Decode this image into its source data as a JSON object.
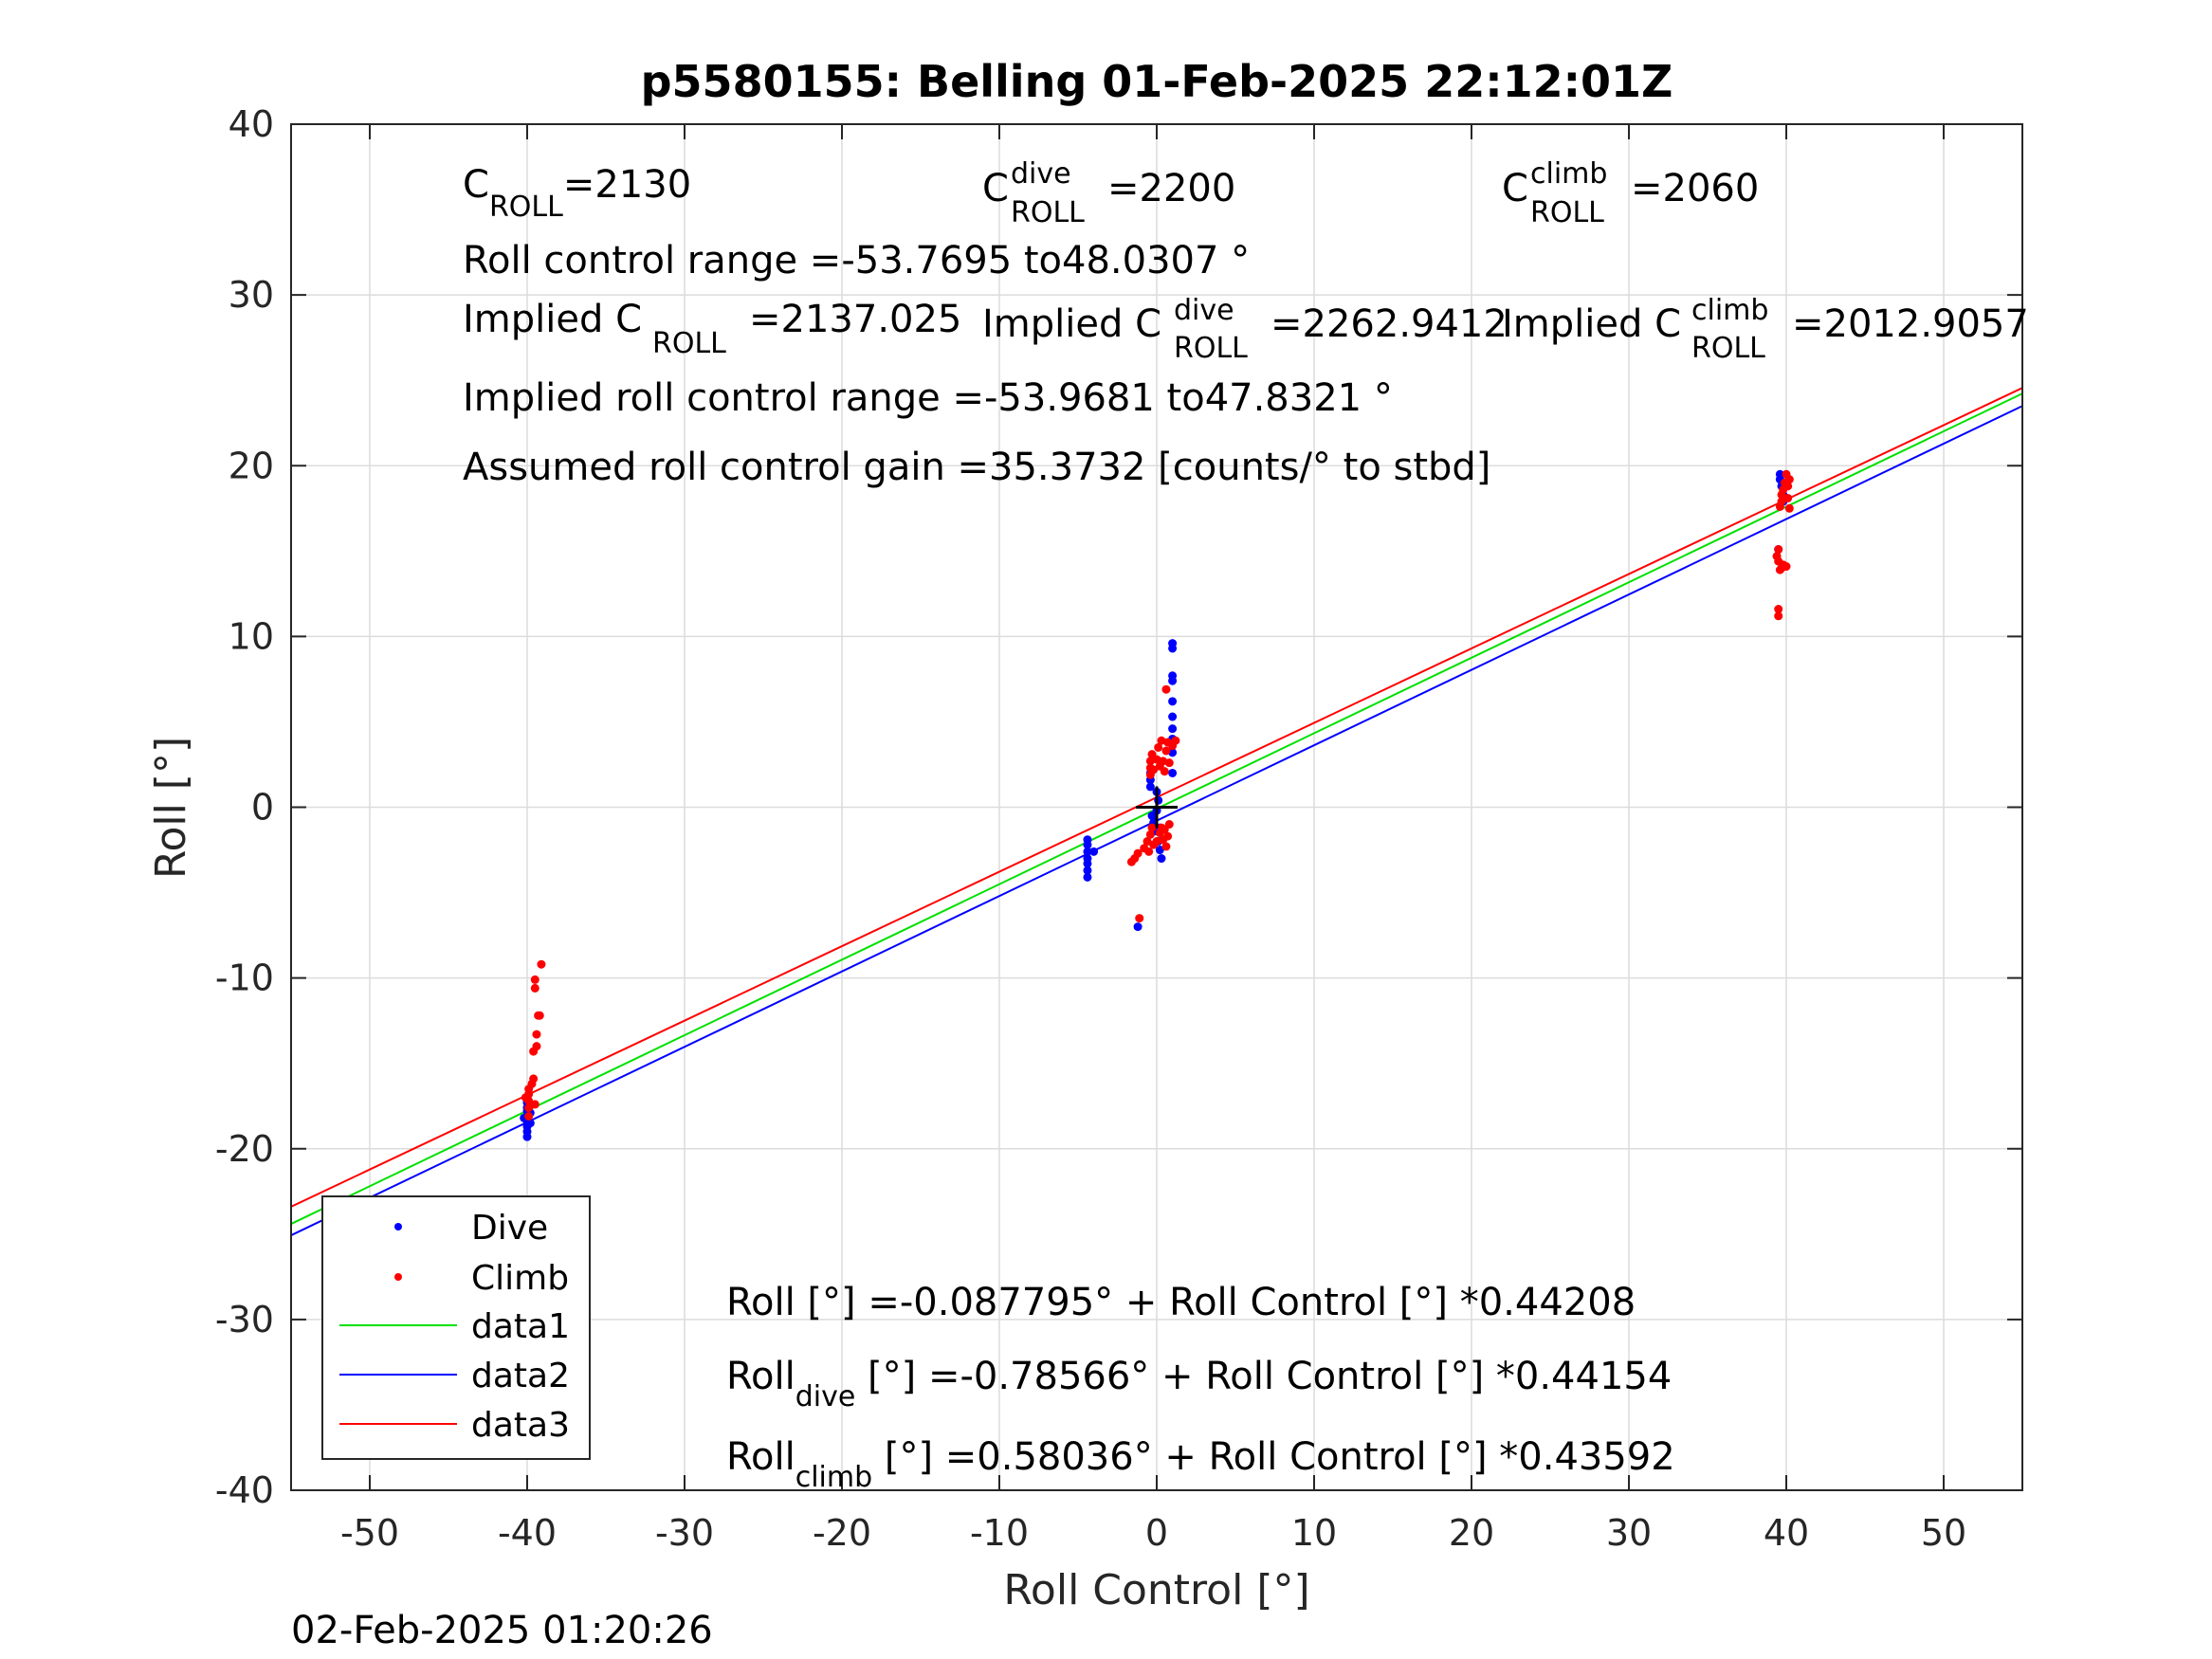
{
  "chart_data": {
    "type": "scatter",
    "title": "p5580155: Belling 01-Feb-2025 22:12:01Z",
    "xlabel": "Roll Control [°]",
    "ylabel": "Roll [°]",
    "xlim": [
      -55,
      55
    ],
    "ylim": [
      -40,
      40
    ],
    "xticks": [
      -50,
      -40,
      -30,
      -20,
      -10,
      0,
      10,
      20,
      30,
      40,
      50
    ],
    "yticks": [
      -40,
      -30,
      -20,
      -10,
      0,
      10,
      20,
      30,
      40
    ],
    "grid": true,
    "legend_position": "bottom-left",
    "footer_timestamp": "02-Feb-2025 01:20:26",
    "annotations": {
      "c_roll": {
        "base": "C",
        "sub": "ROLL",
        "value": "=2130"
      },
      "c_roll_dive": {
        "base": "C",
        "sup": "dive",
        "sub": "ROLL",
        "value": "=2200"
      },
      "c_roll_climb": {
        "base": "C",
        "sup": "climb",
        "sub": "ROLL",
        "value": "=2060"
      },
      "roll_control_range": "Roll control range =-53.7695 to48.0307 °",
      "implied_c_roll": {
        "prefix": "Implied C",
        "sub": "ROLL",
        "value": "=2137.025"
      },
      "implied_c_roll_dive": {
        "prefix": "Implied C",
        "sup": "dive",
        "sub": "ROLL",
        "value": "=2262.9412"
      },
      "implied_c_roll_climb": {
        "prefix": "Implied C",
        "sup": "climb",
        "sub": "ROLL",
        "value": "=2012.9057"
      },
      "implied_range": "Implied roll control range =-53.9681 to47.8321 °",
      "assumed_gain": "Assumed roll control gain =35.3732 [counts/° to stbd]",
      "fit_all": "Roll [°] =-0.087795° + Roll Control [°] *0.44208",
      "fit_dive": {
        "base": "Roll",
        "sub": "dive",
        "rest": " [°] =-0.78566° + Roll Control [°] *0.44154"
      },
      "fit_climb": {
        "base": "Roll",
        "sub": "climb",
        "rest": " [°] =0.58036° + Roll Control [°] *0.43592"
      }
    },
    "series": [
      {
        "name": "Dive",
        "kind": "scatter",
        "color": "#0000ff",
        "points": [
          [
            -40,
            -19.3
          ],
          [
            -40,
            -19.0
          ],
          [
            -40,
            -18.7
          ],
          [
            -40,
            -18.4
          ],
          [
            -40,
            -18.1
          ],
          [
            -40,
            -17.8
          ],
          [
            -40,
            -17.6
          ],
          [
            -40,
            -17.3
          ],
          [
            -40,
            -17.0
          ],
          [
            -40.2,
            -18.2
          ],
          [
            -39.8,
            -18.5
          ],
          [
            -39.8,
            -17.9
          ],
          [
            -4.4,
            -4.1
          ],
          [
            -4.4,
            -3.7
          ],
          [
            -4.4,
            -3.3
          ],
          [
            -4.4,
            -3.0
          ],
          [
            -4.4,
            -2.6
          ],
          [
            -4.4,
            -2.2
          ],
          [
            -4.4,
            -1.9
          ],
          [
            -4.0,
            -2.6
          ],
          [
            -1.2,
            -7.0
          ],
          [
            -0.4,
            1.2
          ],
          [
            -0.4,
            1.6
          ],
          [
            -0.4,
            2.0
          ],
          [
            -0.3,
            -0.5
          ],
          [
            -0.2,
            -0.9
          ],
          [
            -0.1,
            -1.4
          ],
          [
            0.0,
            -0.2
          ],
          [
            0.1,
            0.4
          ],
          [
            0.1,
            -2.0
          ],
          [
            0.2,
            -2.5
          ],
          [
            0.3,
            -3.0
          ],
          [
            0.2,
            -1.2
          ],
          [
            0.0,
            0.9
          ],
          [
            1.0,
            2.0
          ],
          [
            1.0,
            3.2
          ],
          [
            1.0,
            4.0
          ],
          [
            1.0,
            4.6
          ],
          [
            1.0,
            5.3
          ],
          [
            1.0,
            6.2
          ],
          [
            1.0,
            7.4
          ],
          [
            1.0,
            7.7
          ],
          [
            1.0,
            9.3
          ],
          [
            1.0,
            9.6
          ],
          [
            39.5,
            15.1
          ],
          [
            39.6,
            19.2
          ],
          [
            39.6,
            19.5
          ],
          [
            39.7,
            18.8
          ],
          [
            39.8,
            18.3
          ],
          [
            39.8,
            17.9
          ]
        ]
      },
      {
        "name": "Climb",
        "kind": "scatter",
        "color": "#ff0000",
        "points": [
          [
            -39.9,
            -18.1
          ],
          [
            -39.9,
            -17.6
          ],
          [
            -39.9,
            -17.2
          ],
          [
            -39.9,
            -16.8
          ],
          [
            -39.9,
            -16.5
          ],
          [
            -39.7,
            -16.2
          ],
          [
            -39.6,
            -15.9
          ],
          [
            -39.5,
            -17.4
          ],
          [
            -40.1,
            -17.0
          ],
          [
            -39.6,
            -14.3
          ],
          [
            -39.4,
            -14.0
          ],
          [
            -39.4,
            -13.3
          ],
          [
            -39.3,
            -12.2
          ],
          [
            -39.2,
            -12.2
          ],
          [
            -39.5,
            -10.6
          ],
          [
            -39.5,
            -10.1
          ],
          [
            -39.1,
            -9.2
          ],
          [
            -1.6,
            -3.2
          ],
          [
            -1.4,
            -3.0
          ],
          [
            -1.2,
            -2.7
          ],
          [
            -1.1,
            -6.5
          ],
          [
            -0.8,
            -2.4
          ],
          [
            -0.6,
            -2.0
          ],
          [
            -0.5,
            -2.6
          ],
          [
            -0.4,
            -1.6
          ],
          [
            -0.3,
            -1.2
          ],
          [
            -0.2,
            -2.2
          ],
          [
            0.0,
            -2.0
          ],
          [
            0.2,
            -1.5
          ],
          [
            0.3,
            -1.2
          ],
          [
            0.4,
            -1.9
          ],
          [
            0.5,
            -1.3
          ],
          [
            0.6,
            -2.3
          ],
          [
            0.7,
            -1.7
          ],
          [
            0.8,
            -1.0
          ],
          [
            -0.4,
            1.9
          ],
          [
            -0.4,
            2.3
          ],
          [
            -0.4,
            2.7
          ],
          [
            -0.3,
            3.1
          ],
          [
            -0.2,
            2.2
          ],
          [
            0.0,
            2.8
          ],
          [
            0.1,
            3.5
          ],
          [
            0.2,
            2.4
          ],
          [
            0.3,
            3.9
          ],
          [
            0.4,
            2.7
          ],
          [
            0.5,
            2.1
          ],
          [
            0.6,
            3.3
          ],
          [
            0.7,
            3.8
          ],
          [
            0.8,
            2.6
          ],
          [
            1.0,
            3.6
          ],
          [
            1.2,
            3.9
          ],
          [
            0.6,
            6.9
          ],
          [
            39.4,
            14.7
          ],
          [
            39.5,
            15.1
          ],
          [
            39.5,
            14.4
          ],
          [
            39.6,
            13.9
          ],
          [
            39.7,
            14.0
          ],
          [
            39.8,
            14.2
          ],
          [
            40.0,
            14.1
          ],
          [
            39.5,
            11.6
          ],
          [
            39.5,
            11.2
          ],
          [
            39.6,
            17.6
          ],
          [
            39.7,
            17.9
          ],
          [
            39.7,
            18.3
          ],
          [
            39.8,
            18.6
          ],
          [
            39.9,
            19.0
          ],
          [
            40.0,
            19.5
          ],
          [
            40.1,
            18.1
          ],
          [
            40.1,
            18.8
          ],
          [
            40.2,
            17.5
          ],
          [
            40.2,
            19.2
          ]
        ]
      },
      {
        "name": "data1",
        "kind": "line",
        "color": "#00e000",
        "intercept": -0.087795,
        "slope": 0.44208
      },
      {
        "name": "data2",
        "kind": "line",
        "color": "#0000ff",
        "intercept": -0.78566,
        "slope": 0.44154
      },
      {
        "name": "data3",
        "kind": "line",
        "color": "#ff0000",
        "intercept": 0.58036,
        "slope": 0.43592
      }
    ],
    "origin_marker": {
      "x": 0,
      "y": 0
    }
  }
}
